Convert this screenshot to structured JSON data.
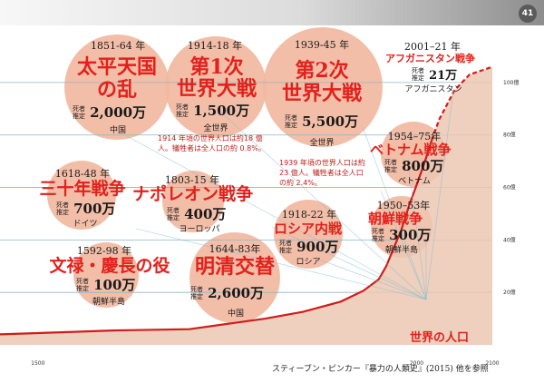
{
  "page_number": "41",
  "colors": {
    "bubble": "#f2b79e",
    "bubble_dark": "#ef9d7f",
    "title_red": "#e3201b",
    "population_fill": "#ecc7b2",
    "population_line": "#d11b1b",
    "gridline": "#8fb5c9",
    "leader": "#7fc0d0"
  },
  "chart_data": {
    "type": "area",
    "title": "世界の人口",
    "x_ticks": [
      "1500",
      "2000",
      "2100"
    ],
    "y_ticks": [
      "20億",
      "40億",
      "60億",
      "80億",
      "100億"
    ],
    "xlim": [
      1450,
      2100
    ],
    "ylim": [
      0,
      110
    ],
    "y_unit": "億",
    "series": [
      {
        "name": "世界の人口",
        "points": [
          [
            1450,
            4.0
          ],
          [
            1500,
            4.5
          ],
          [
            1600,
            5.5
          ],
          [
            1700,
            6.0
          ],
          [
            1800,
            10.0
          ],
          [
            1850,
            12.6
          ],
          [
            1900,
            16.5
          ],
          [
            1930,
            20.7
          ],
          [
            1950,
            25.0
          ],
          [
            1960,
            30.0
          ],
          [
            1970,
            37.0
          ],
          [
            1980,
            44.0
          ],
          [
            1990,
            53.0
          ],
          [
            2000,
            61.0
          ],
          [
            2010,
            69.0
          ],
          [
            2020,
            78.0
          ]
        ],
        "projection": [
          [
            2020,
            78.0
          ],
          [
            2030,
            86.0
          ],
          [
            2050,
            97.0
          ],
          [
            2070,
            103.0
          ],
          [
            2100,
            106.0
          ]
        ]
      }
    ]
  },
  "events": [
    {
      "years": "1851-64 年",
      "title_lines": [
        "太平天国",
        "の乱"
      ],
      "deaths": "2,000万",
      "region": "中国",
      "death_label": [
        "死者",
        "推定"
      ]
    },
    {
      "years": "1914-18 年",
      "title_lines": [
        "第1次",
        "世界大戦"
      ],
      "deaths": "1,500万",
      "region": "全世界",
      "death_label": [
        "死者",
        "推定"
      ],
      "note": "1914 年頃の世界人口は約18 億人。犠牲者は全人口の約 0.8%。"
    },
    {
      "years": "1939-45 年",
      "title_lines": [
        "第2次",
        "世界大戦"
      ],
      "deaths": "5,500万",
      "region": "全世界",
      "death_label": [
        "死者",
        "推定"
      ],
      "note": "1939 年頃の世界人口は約 23 億人。犠牲者は全人口の約 2.4%。"
    },
    {
      "years": "2001–21 年",
      "title_lines": [
        "アフガニスタン戦争"
      ],
      "deaths": "21万",
      "region": "アフガニスタン",
      "death_label": [
        "死者",
        "推定"
      ]
    },
    {
      "years": "1954–75年",
      "title_lines": [
        "ベトナム戦争"
      ],
      "deaths": "800万",
      "region": "ベトナム",
      "death_label": [
        "死者",
        "推定"
      ]
    },
    {
      "years": "1618-48 年",
      "title_lines": [
        "三十年戦争"
      ],
      "deaths": "700万",
      "region": "ドイツ",
      "death_label": [
        "死者",
        "推定"
      ]
    },
    {
      "years": "1803-15 年",
      "title_lines": [
        "ナポレオン戦争"
      ],
      "deaths": "400万",
      "region": "ヨーロッパ",
      "death_label": [
        "死者",
        "推定"
      ]
    },
    {
      "years": "1918-22 年",
      "title_lines": [
        "ロシア内戦"
      ],
      "deaths": "900万",
      "region": "ロシア",
      "death_label": [
        "死者",
        "推定"
      ]
    },
    {
      "years": "1950–53年",
      "title_lines": [
        "朝鮮戦争"
      ],
      "deaths": "300万",
      "region": "朝鮮半島",
      "death_label": [
        "死者",
        "推定"
      ]
    },
    {
      "years": "1592-98 年",
      "title_lines": [
        "文禄・慶長の役"
      ],
      "deaths": "100万",
      "region": "朝鮮半島",
      "death_label": [
        "死者",
        "推定"
      ]
    },
    {
      "years": "1644-83年",
      "title_lines": [
        "明清交替"
      ],
      "deaths": "2,600万",
      "region": "中国",
      "death_label": [
        "死者",
        "推定"
      ]
    }
  ],
  "source_credit": "スティーブン・ピンカー『暴力の人類史』(2015) 他を参照"
}
